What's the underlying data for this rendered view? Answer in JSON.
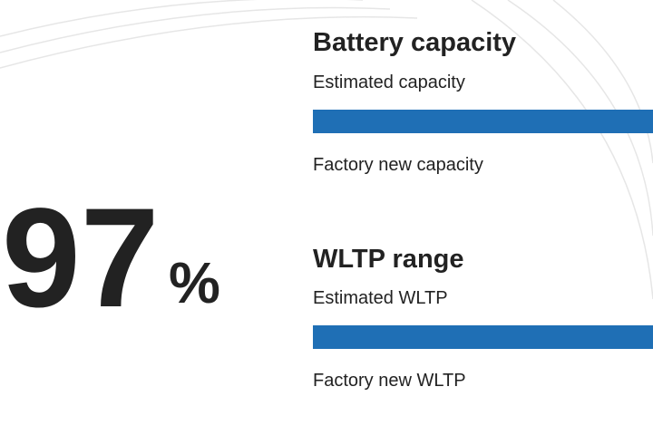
{
  "gauge": {
    "value": 97,
    "unit": "%"
  },
  "sections": [
    {
      "title": "Battery capacity",
      "estimated_label": "Estimated capacity",
      "factory_label": "Factory new capacity"
    },
    {
      "title": "WLTP range",
      "estimated_label": "Estimated WLTP",
      "factory_label": "Factory new WLTP"
    }
  ]
}
